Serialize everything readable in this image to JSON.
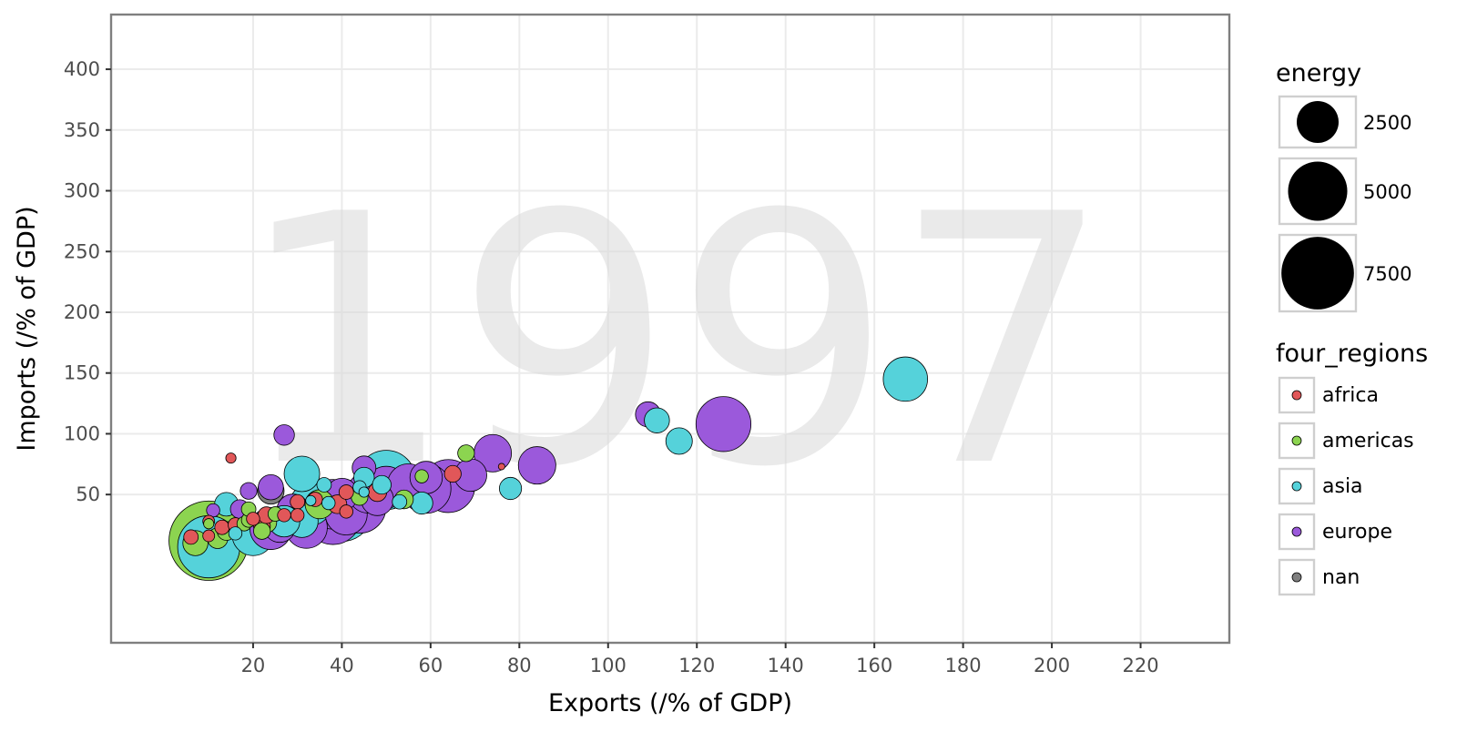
{
  "chart_data": {
    "type": "scatter",
    "title": "",
    "watermark": "1997",
    "xlabel": "Exports (/% of GDP)",
    "ylabel": "Imports (/% of GDP)",
    "xlim": [
      -12,
      240
    ],
    "ylim": [
      -72,
      445
    ],
    "x_ticks": [
      20,
      40,
      60,
      80,
      100,
      120,
      140,
      160,
      180,
      200,
      220
    ],
    "y_ticks": [
      50,
      100,
      150,
      200,
      250,
      300,
      350,
      400
    ],
    "grid": true,
    "size_legend": {
      "title": "energy",
      "entries": [
        {
          "label": "2500",
          "value": 2500
        },
        {
          "label": "5000",
          "value": 5000
        },
        {
          "label": "7500",
          "value": 7500
        }
      ]
    },
    "color_legend": {
      "title": "four_regions",
      "entries": [
        {
          "label": "africa",
          "color": "#E15759"
        },
        {
          "label": "americas",
          "color": "#8CD450"
        },
        {
          "label": "asia",
          "color": "#55D2DA"
        },
        {
          "label": "europe",
          "color": "#9B59DB"
        },
        {
          "label": "nan",
          "color": "#7F7F7F"
        }
      ]
    },
    "points": [
      {
        "x": 10,
        "y": 12,
        "energy": 9000,
        "region": "americas"
      },
      {
        "x": 10,
        "y": 7,
        "energy": 5500,
        "region": "asia"
      },
      {
        "x": 7,
        "y": 10,
        "energy": 900,
        "region": "americas"
      },
      {
        "x": 12,
        "y": 14,
        "energy": 600,
        "region": "americas"
      },
      {
        "x": 14,
        "y": 20,
        "energy": 500,
        "region": "americas"
      },
      {
        "x": 13,
        "y": 23,
        "energy": 300,
        "region": "africa"
      },
      {
        "x": 6,
        "y": 15,
        "energy": 300,
        "region": "africa"
      },
      {
        "x": 10,
        "y": 16,
        "energy": 200,
        "region": "africa"
      },
      {
        "x": 10,
        "y": 28,
        "energy": 200,
        "region": "africa"
      },
      {
        "x": 10,
        "y": 26,
        "energy": 150,
        "region": "americas"
      },
      {
        "x": 11,
        "y": 37,
        "energy": 250,
        "region": "europe"
      },
      {
        "x": 14,
        "y": 42,
        "energy": 800,
        "region": "asia"
      },
      {
        "x": 15,
        "y": 80,
        "energy": 150,
        "region": "africa"
      },
      {
        "x": 16,
        "y": 25,
        "energy": 300,
        "region": "africa"
      },
      {
        "x": 16,
        "y": 18,
        "energy": 250,
        "region": "asia"
      },
      {
        "x": 17,
        "y": 38,
        "energy": 500,
        "region": "europe"
      },
      {
        "x": 18,
        "y": 26,
        "energy": 300,
        "region": "americas"
      },
      {
        "x": 19,
        "y": 29,
        "energy": 300,
        "region": "americas"
      },
      {
        "x": 20,
        "y": 17,
        "energy": 2500,
        "region": "asia"
      },
      {
        "x": 19,
        "y": 38,
        "energy": 300,
        "region": "americas"
      },
      {
        "x": 19,
        "y": 53,
        "energy": 400,
        "region": "europe"
      },
      {
        "x": 20,
        "y": 30,
        "energy": 250,
        "region": "africa"
      },
      {
        "x": 22,
        "y": 24,
        "energy": 400,
        "region": "africa"
      },
      {
        "x": 22,
        "y": 20,
        "energy": 400,
        "region": "americas"
      },
      {
        "x": 23,
        "y": 27,
        "energy": 600,
        "region": "americas"
      },
      {
        "x": 23,
        "y": 33,
        "energy": 400,
        "region": "africa"
      },
      {
        "x": 24,
        "y": 22,
        "energy": 2500,
        "region": "europe"
      },
      {
        "x": 24,
        "y": 56,
        "energy": 900,
        "region": "europe"
      },
      {
        "x": 24,
        "y": 53,
        "energy": 1000,
        "region": "nan"
      },
      {
        "x": 25,
        "y": 34,
        "energy": 300,
        "region": "americas"
      },
      {
        "x": 26,
        "y": 24,
        "energy": 1500,
        "region": "europe"
      },
      {
        "x": 27,
        "y": 33,
        "energy": 250,
        "region": "africa"
      },
      {
        "x": 27,
        "y": 28,
        "energy": 1400,
        "region": "asia"
      },
      {
        "x": 27,
        "y": 99,
        "energy": 600,
        "region": "europe"
      },
      {
        "x": 29,
        "y": 37,
        "energy": 1500,
        "region": "europe"
      },
      {
        "x": 30,
        "y": 33,
        "energy": 250,
        "region": "africa"
      },
      {
        "x": 30,
        "y": 44,
        "energy": 300,
        "region": "africa"
      },
      {
        "x": 31,
        "y": 28,
        "energy": 1500,
        "region": "asia"
      },
      {
        "x": 32,
        "y": 23,
        "energy": 2500,
        "region": "europe"
      },
      {
        "x": 31,
        "y": 67,
        "energy": 1800,
        "region": "asia"
      },
      {
        "x": 33,
        "y": 42,
        "energy": 2500,
        "region": "asia"
      },
      {
        "x": 33,
        "y": 45,
        "energy": 150,
        "region": "asia"
      },
      {
        "x": 34,
        "y": 46,
        "energy": 300,
        "region": "africa"
      },
      {
        "x": 35,
        "y": 42,
        "energy": 1200,
        "region": "americas"
      },
      {
        "x": 36,
        "y": 58,
        "energy": 300,
        "region": "asia"
      },
      {
        "x": 37,
        "y": 43,
        "energy": 250,
        "region": "asia"
      },
      {
        "x": 38,
        "y": 32,
        "energy": 4500,
        "region": "europe"
      },
      {
        "x": 38,
        "y": 42,
        "energy": 3500,
        "region": "europe"
      },
      {
        "x": 40,
        "y": 37,
        "energy": 5500,
        "region": "asia"
      },
      {
        "x": 39,
        "y": 42,
        "energy": 500,
        "region": "africa"
      },
      {
        "x": 41,
        "y": 34,
        "energy": 2500,
        "region": "europe"
      },
      {
        "x": 40,
        "y": 50,
        "energy": 1500,
        "region": "europe"
      },
      {
        "x": 41,
        "y": 36,
        "energy": 250,
        "region": "africa"
      },
      {
        "x": 41,
        "y": 52,
        "energy": 300,
        "region": "africa"
      },
      {
        "x": 44,
        "y": 48,
        "energy": 400,
        "region": "americas"
      },
      {
        "x": 44,
        "y": 40,
        "energy": 4000,
        "region": "europe"
      },
      {
        "x": 44,
        "y": 56,
        "energy": 250,
        "region": "asia"
      },
      {
        "x": 45,
        "y": 72,
        "energy": 800,
        "region": "europe"
      },
      {
        "x": 46,
        "y": 52,
        "energy": 2500,
        "region": "europe"
      },
      {
        "x": 45,
        "y": 64,
        "energy": 600,
        "region": "asia"
      },
      {
        "x": 45,
        "y": 52,
        "energy": 150,
        "region": "asia"
      },
      {
        "x": 48,
        "y": 46,
        "energy": 1500,
        "region": "europe"
      },
      {
        "x": 48,
        "y": 52,
        "energy": 500,
        "region": "africa"
      },
      {
        "x": 49,
        "y": 58,
        "energy": 500,
        "region": "asia"
      },
      {
        "x": 50,
        "y": 62,
        "energy": 5000,
        "region": "asia"
      },
      {
        "x": 50,
        "y": 56,
        "energy": 2500,
        "region": "europe"
      },
      {
        "x": 53,
        "y": 44,
        "energy": 300,
        "region": "asia"
      },
      {
        "x": 54,
        "y": 46,
        "energy": 500,
        "region": "americas"
      },
      {
        "x": 55,
        "y": 58,
        "energy": 2500,
        "region": "europe"
      },
      {
        "x": 58,
        "y": 43,
        "energy": 700,
        "region": "asia"
      },
      {
        "x": 59,
        "y": 55,
        "energy": 3500,
        "region": "europe"
      },
      {
        "x": 59,
        "y": 64,
        "energy": 1500,
        "region": "europe"
      },
      {
        "x": 58,
        "y": 65,
        "energy": 250,
        "region": "americas"
      },
      {
        "x": 64,
        "y": 57,
        "energy": 4000,
        "region": "europe"
      },
      {
        "x": 65,
        "y": 67,
        "energy": 400,
        "region": "africa"
      },
      {
        "x": 68,
        "y": 84,
        "energy": 400,
        "region": "americas"
      },
      {
        "x": 69,
        "y": 66,
        "energy": 1500,
        "region": "europe"
      },
      {
        "x": 74,
        "y": 84,
        "energy": 2000,
        "region": "europe"
      },
      {
        "x": 76,
        "y": 73,
        "energy": 60,
        "region": "africa"
      },
      {
        "x": 78,
        "y": 55,
        "energy": 700,
        "region": "asia"
      },
      {
        "x": 84,
        "y": 74,
        "energy": 2000,
        "region": "europe"
      },
      {
        "x": 109,
        "y": 116,
        "energy": 900,
        "region": "europe"
      },
      {
        "x": 111,
        "y": 111,
        "energy": 900,
        "region": "asia"
      },
      {
        "x": 116,
        "y": 94,
        "energy": 1000,
        "region": "asia"
      },
      {
        "x": 126,
        "y": 108,
        "energy": 4300,
        "region": "europe"
      },
      {
        "x": 167,
        "y": 145,
        "energy": 2800,
        "region": "asia"
      }
    ]
  }
}
